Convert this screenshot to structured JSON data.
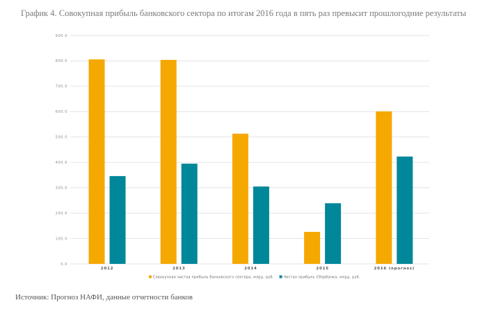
{
  "title": "График 4. Совокупная прибыль банковского сектора по итогам 2016 года в пять раз превысит прошлогодние результаты",
  "source": "Источник: Прогноз НАФИ, данные отчетности банков",
  "chart_data": {
    "type": "bar",
    "title": "График 4. Совокупная прибыль банковского сектора по итогам 2016 года в пять раз превысит прошлогодние результаты",
    "xlabel": "",
    "ylabel": "",
    "categories": [
      "2012",
      "2013",
      "2014",
      "2015",
      "2016 (прогноз)"
    ],
    "series": [
      {
        "name": "Совокупная чистая прибыль банковского сектора, млрд. руб.",
        "color": "#F5A800",
        "values": [
          806,
          804,
          513,
          126,
          601
        ]
      },
      {
        "name": "Чистая прибыль Сбербанка, млрд. руб.",
        "color": "#00879A",
        "values": [
          346,
          395,
          305,
          239,
          423
        ]
      }
    ],
    "ylim": [
      0,
      900
    ],
    "yticks": [
      "0.0",
      "100.0",
      "200.0",
      "300.0",
      "400.0",
      "500.0",
      "600.0",
      "700.0",
      "800.0",
      "900.0"
    ],
    "ytick_values": [
      0,
      100,
      200,
      300,
      400,
      500,
      600,
      700,
      800,
      900
    ],
    "grid": true,
    "legend_position": "bottom-center"
  }
}
